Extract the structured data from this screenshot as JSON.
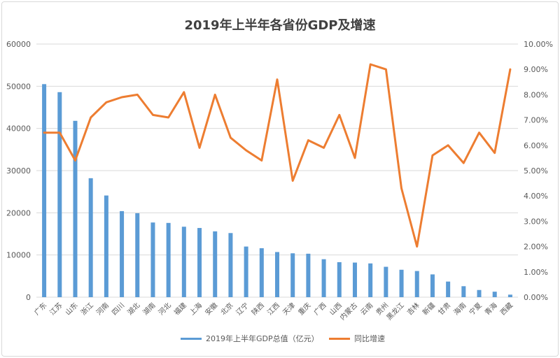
{
  "chart_data": {
    "type": "bar+line",
    "title": "2019年上半年各省份GDP及增速",
    "categories": [
      "广东",
      "江苏",
      "山东",
      "浙江",
      "河南",
      "四川",
      "湖北",
      "湖南",
      "河北",
      "福建",
      "上海",
      "安徽",
      "北京",
      "辽宁",
      "陕西",
      "江西",
      "天津",
      "重庆",
      "广西",
      "山西",
      "内蒙古",
      "云南",
      "贵州",
      "黑龙江",
      "吉林",
      "新疆",
      "甘肃",
      "海南",
      "宁夏",
      "青海",
      "西藏"
    ],
    "series": [
      {
        "name": "2019年上半年GDP总值（亿元）",
        "type": "bar",
        "axis": "left",
        "color": "#5b9bd5",
        "values": [
          50500,
          48600,
          41800,
          28200,
          24100,
          20400,
          19900,
          17700,
          17600,
          16700,
          16400,
          15600,
          15200,
          12000,
          11600,
          10700,
          10400,
          10300,
          9000,
          8300,
          8200,
          8000,
          7200,
          6500,
          6200,
          5400,
          3700,
          2600,
          1700,
          1300,
          600
        ]
      },
      {
        "name": "同比增速",
        "type": "line",
        "axis": "right",
        "color": "#ed7d31",
        "values": [
          6.5,
          6.5,
          5.4,
          7.1,
          7.7,
          7.9,
          8.0,
          7.2,
          7.1,
          8.1,
          5.9,
          8.0,
          6.3,
          5.8,
          5.4,
          8.6,
          4.6,
          6.2,
          5.9,
          7.2,
          5.5,
          9.2,
          9.0,
          4.3,
          2.0,
          5.6,
          6.0,
          5.3,
          6.5,
          5.7,
          9.0
        ]
      }
    ],
    "y_left": {
      "min": 0,
      "max": 60000,
      "step": 10000,
      "ticks": [
        "0",
        "10000",
        "20000",
        "30000",
        "40000",
        "50000",
        "60000"
      ]
    },
    "y_right": {
      "min": 0,
      "max": 10,
      "step": 1,
      "ticks": [
        "0.00%",
        "1.00%",
        "2.00%",
        "3.00%",
        "4.00%",
        "5.00%",
        "6.00%",
        "7.00%",
        "8.00%",
        "9.00%",
        "10.00%"
      ]
    },
    "grid": true,
    "legend_position": "bottom"
  },
  "colors": {
    "bar": "#5b9bd5",
    "line": "#ed7d31",
    "grid": "#d9d9d9",
    "text": "#595959"
  }
}
